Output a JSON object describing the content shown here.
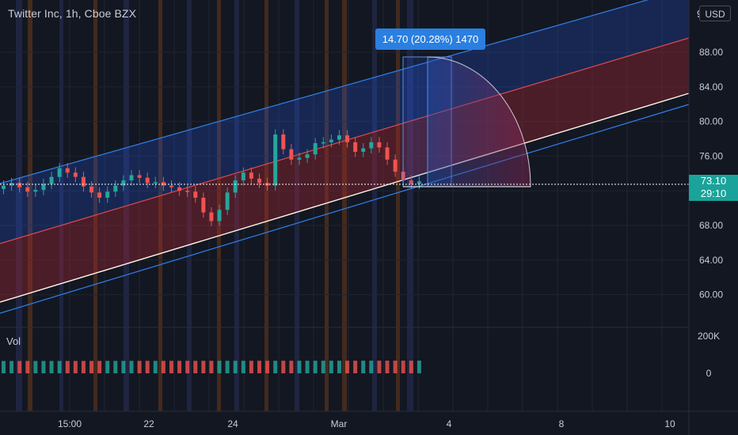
{
  "header": {
    "title": "Twitter Inc, 1h, Cboe BZX",
    "currency_button": "USD",
    "cut_off_label": "9"
  },
  "measure": {
    "label": "14.70 (20.28%) 1470"
  },
  "last_price": {
    "price": "73.10",
    "countdown": "29:10"
  },
  "volume": {
    "label": "Vol"
  },
  "colors": {
    "background": "#131722",
    "up": "#26a69a",
    "down": "#ef5350",
    "channel_blue": "#2962ff",
    "channel_red": "#b22833"
  },
  "chart_data": [
    {
      "type": "candlestick",
      "title": "Twitter Inc, 1h, Cboe BZX",
      "price_axis": {
        "ticks": [
          88,
          84,
          80,
          76,
          72,
          68,
          64,
          60
        ],
        "tick_labels": [
          "88.00",
          "84.00",
          "80.00",
          "76.00",
          "",
          "68.00",
          "64.00",
          "60.00"
        ],
        "ylim": [
          57.7,
          91.5
        ]
      },
      "time_axis": {
        "tick_labels": [
          "15:00",
          "22",
          "24",
          "Mar",
          "4",
          "8",
          "10"
        ]
      },
      "annotations": [
        "regression channel",
        "price range measure 14.70 (20.28%) 1470"
      ],
      "close_series_approx": [
        72.6,
        72.9,
        72.4,
        71.9,
        72.1,
        72.8,
        73.6,
        74.6,
        74.1,
        73.6,
        72.5,
        71.8,
        71.2,
        71.9,
        72.6,
        73.2,
        73.8,
        73.5,
        72.9,
        73.0,
        72.6,
        72.4,
        72.0,
        71.9,
        71.2,
        69.5,
        68.5,
        69.8,
        71.8,
        73.2,
        74.1,
        73.4,
        72.9,
        72.6,
        78.5,
        76.8,
        75.6,
        75.8,
        76.2,
        77.5,
        77.6,
        77.9,
        78.4,
        77.6,
        76.5,
        76.9,
        77.6,
        77.0,
        75.6,
        74.2,
        73.2,
        72.8,
        73.1
      ]
    },
    {
      "type": "bar",
      "series": "volume",
      "y_tick_labels": [
        "200K",
        "0"
      ],
      "ylim": [
        0,
        220000
      ]
    }
  ]
}
